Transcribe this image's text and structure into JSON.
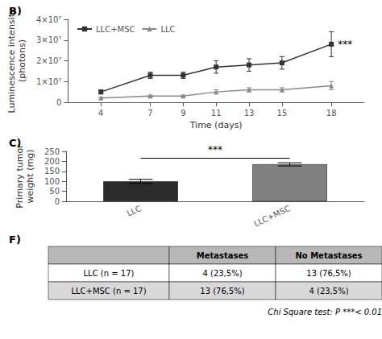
{
  "chart_data": [
    {
      "type": "line",
      "title": "B)",
      "xlabel": "Time (days)",
      "ylabel": "Luminescence intensity\n(photons)",
      "xlim": [
        2,
        20
      ],
      "xticks": [
        4,
        7,
        9,
        11,
        13,
        15,
        18
      ],
      "ylim": [
        0,
        40000000
      ],
      "yticks": [
        0,
        {
          "value": 10000000,
          "label": "1×10⁷"
        },
        {
          "value": 20000000,
          "label": "2×10⁷"
        },
        {
          "value": 30000000,
          "label": "3×10⁷"
        },
        {
          "value": 40000000,
          "label": "4×10⁷"
        }
      ],
      "x": [
        4,
        7,
        9,
        11,
        13,
        15,
        18
      ],
      "series": [
        {
          "name": "LLC+MSC",
          "color": "#333333",
          "marker": "square",
          "values": [
            5000000,
            13000000,
            13000000,
            17000000,
            18000000,
            19000000,
            28000000
          ],
          "errors": [
            1000000,
            1500000,
            1500000,
            3000000,
            3000000,
            3000000,
            6000000
          ]
        },
        {
          "name": "LLC",
          "color": "#888888",
          "marker": "triangle",
          "values": [
            2000000,
            3000000,
            3000000,
            5000000,
            6000000,
            6000000,
            8000000
          ],
          "errors": [
            500000,
            500000,
            500000,
            1000000,
            1000000,
            1000000,
            2000000
          ]
        }
      ],
      "annotations": [
        {
          "text": "***",
          "x": 18,
          "y": 28000000
        }
      ],
      "legend": "upper left",
      "grid": false
    },
    {
      "type": "bar",
      "title": "C)",
      "ylabel": "Primary tumor\nweight (mg)",
      "categories": [
        "LLC",
        "LLC+MSC"
      ],
      "values": [
        100,
        185
      ],
      "errors": [
        10,
        8
      ],
      "colors": [
        "#2b2b2b",
        "#808080"
      ],
      "ylim": [
        0,
        250
      ],
      "yticks": [
        0,
        50,
        100,
        150,
        200,
        250
      ],
      "annotations": [
        {
          "text": "***",
          "x": [
            "LLC",
            "LLC+MSC"
          ],
          "y": 215
        }
      ],
      "grid": false
    },
    {
      "type": "table",
      "title": "F)",
      "columns": [
        "",
        "Metastases",
        "No Metastases"
      ],
      "rows": [
        "LLC (n = 17)",
        "LLC+MSC (n = 17)"
      ],
      "cells": [
        [
          "4 (23,5%)",
          "13 (76,5%)"
        ],
        [
          "13 (76,5%)",
          "4 (23,5%)"
        ]
      ],
      "colors": [
        "#b8b8b8",
        "#ffffff",
        "#d8d8d8"
      ],
      "footnote": "Chi Square test: P ***< 0.01"
    }
  ]
}
